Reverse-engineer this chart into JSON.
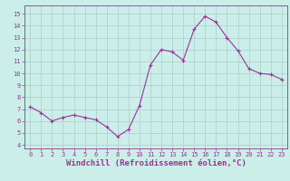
{
  "hours": [
    0,
    1,
    2,
    3,
    4,
    5,
    6,
    7,
    8,
    9,
    10,
    11,
    12,
    13,
    14,
    15,
    16,
    17,
    18,
    19,
    20,
    21,
    22,
    23
  ],
  "windchill": [
    7.2,
    6.7,
    6.0,
    6.3,
    6.5,
    6.3,
    6.1,
    5.5,
    4.7,
    5.3,
    7.3,
    10.7,
    12.0,
    11.8,
    11.1,
    13.7,
    14.8,
    14.3,
    13.0,
    11.9,
    10.4,
    10.0,
    9.9,
    9.5
  ],
  "line_color": "#993399",
  "marker": "+",
  "markersize": 3,
  "linewidth": 0.8,
  "bg_color": "#cceee8",
  "grid_color": "#aacccc",
  "xlabel": "Windchill (Refroidissement éolien,°C)",
  "xlabel_color": "#993399",
  "ylabel_ticks": [
    4,
    5,
    6,
    7,
    8,
    9,
    10,
    11,
    12,
    13,
    14,
    15
  ],
  "ylim": [
    3.7,
    15.7
  ],
  "xlim": [
    -0.5,
    23.5
  ],
  "xtick_labels": [
    "0",
    "1",
    "2",
    "3",
    "4",
    "5",
    "6",
    "7",
    "8",
    "9",
    "10",
    "11",
    "12",
    "13",
    "14",
    "15",
    "16",
    "17",
    "18",
    "19",
    "20",
    "21",
    "22",
    "23"
  ],
  "tick_color": "#993399",
  "tick_fontsize": 5.0,
  "xlabel_fontsize": 6.5,
  "markeredgewidth": 0.8
}
